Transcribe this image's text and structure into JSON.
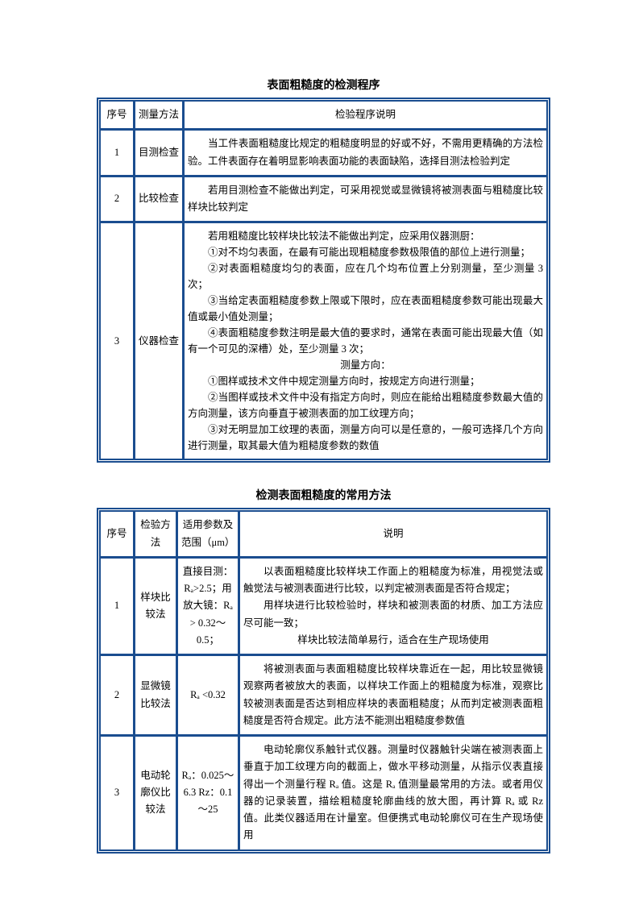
{
  "tables": {
    "t1": {
      "title": "表面粗糙度的检测程序",
      "headers": {
        "seq": "序号",
        "method": "测量方法",
        "desc": "检验程序说明"
      },
      "rows": [
        {
          "seq": "1",
          "method": "目测检查",
          "desc": "当工件表面粗糙度比规定的粗糙度明显的好或不好，不需用更精确的方法检验。工件表面存在着明显影响表面功能的表面缺陷，选择目测法检验判定"
        },
        {
          "seq": "2",
          "method": "比较检查",
          "desc": "若用目测检查不能做出判定，可采用视觉或显微镜将被测表面与粗糙度比较样块比较判定"
        },
        {
          "seq": "3",
          "method": "仪器检查",
          "desc_lines": [
            "若用粗糙度比较样块比较法不能做出判定，应采用仪器测厨：",
            "①对不均匀表面，在最有可能出现粗糙度参数极限值的部位上进行测量；",
            "②对表面粗糙度均匀的表面，应在几个均布位置上分别测量，至少测量 3 次；",
            "③当给定表面粗糙度参数上限或下限时，应在表面粗糙度参数可能出现最大值或最小值处测量；",
            "④表面粗糙度参数注明是最大值的要求时，通常在表面可能出现最大值（如有一个可见的深槽）处，至少测量 3 次；",
            "测量方向：",
            "①图样或技术文件中规定测量方向时，按规定方向进行测量；",
            "②当图样或技术文件中没有指定方向时，则应在能给出粗糙度参数最大值的方向测量，该方向垂直于被测表面的加工纹理方向；",
            "③对无明显加工纹理的表面，测量方向可以是任意的，一般可选择几个方向进行测量，取其最大值为粗糙度参数的数值"
          ]
        }
      ]
    },
    "t2": {
      "title": "检测表面粗糙度的常用方法",
      "headers": {
        "seq": "序号",
        "method": "检验方法",
        "range": "适用参数及范围（μm）",
        "desc": "说明"
      },
      "rows": [
        {
          "seq": "1",
          "method": "样块比较法",
          "range": "直接目测：Rₐ>2.5；用放大镜：Rₐ > 0.32～0.5；",
          "desc_lines": [
            "以表面粗糙度比较样块工作面上的粗糙度为标准，用视觉法或触觉法与被测表面进行比较，以判定被测表面是否符合规定；",
            "用样块进行比较检验时，样块和被测表面的材质、加工方法应尽可能一致；",
            "样块比较法简单易行，适合在生产现场使用"
          ]
        },
        {
          "seq": "2",
          "method": "显微镜比较法",
          "range": "Rₐ <0.32",
          "desc": "将被测表面与表面粗糙度比较样块靠近在一起，用比较显微镜观察两者被放大的表面，以样块工作面上的粗糙度为标准，观察比较被测表面是否达到相应样块的表面粗糙度；从而判定被测表面粗糙度是否符合规定。此方法不能测出粗糙度参数值"
        },
        {
          "seq": "3",
          "method": "电动轮廓仪比较法",
          "range": "Rₐ：0.025～6.3 Rz：0.1～25",
          "desc": "电动轮廓仪系触针式仪器。测量时仪器触针尖端在被测表面上垂直于加工纹理方向的截面上，做水平移动测量，从指示仪表直接得出一个测量行程 Rₐ 值。这是 Rₐ 值测量最常用的方法。或者用仪器的记录装置，描绘粗糙度轮廓曲线的放大图，再计算 Rₐ 或 Rz 值。此类仪器适用在计量室。但便携式电动轮廓仪可在生产现场使用"
        }
      ]
    }
  },
  "colors": {
    "border": "#1a4d8f",
    "text": "#000000",
    "background": "#ffffff"
  },
  "typography": {
    "body_fontsize": 12.5,
    "title_fontsize": 14,
    "line_height": 1.7
  }
}
